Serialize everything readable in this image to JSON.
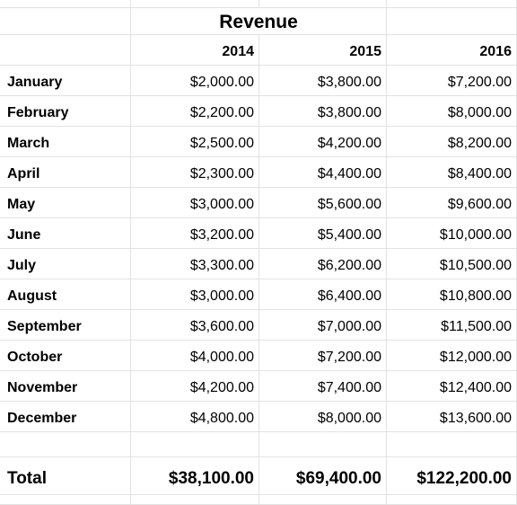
{
  "sheet": {
    "title": "Revenue",
    "years": [
      "2014",
      "2015",
      "2016"
    ],
    "rows": [
      {
        "month": "January",
        "values": [
          "$2,000.00",
          "$3,800.00",
          "$7,200.00"
        ]
      },
      {
        "month": "February",
        "values": [
          "$2,200.00",
          "$3,800.00",
          "$8,000.00"
        ]
      },
      {
        "month": "March",
        "values": [
          "$2,500.00",
          "$4,200.00",
          "$8,200.00"
        ]
      },
      {
        "month": "April",
        "values": [
          "$2,300.00",
          "$4,400.00",
          "$8,400.00"
        ]
      },
      {
        "month": "May",
        "values": [
          "$3,000.00",
          "$5,600.00",
          "$9,600.00"
        ]
      },
      {
        "month": "June",
        "values": [
          "$3,200.00",
          "$5,400.00",
          "$10,000.00"
        ]
      },
      {
        "month": "July",
        "values": [
          "$3,300.00",
          "$6,200.00",
          "$10,500.00"
        ]
      },
      {
        "month": "August",
        "values": [
          "$3,000.00",
          "$6,400.00",
          "$10,800.00"
        ]
      },
      {
        "month": "September",
        "values": [
          "$3,600.00",
          "$7,000.00",
          "$11,500.00"
        ]
      },
      {
        "month": "October",
        "values": [
          "$4,000.00",
          "$7,200.00",
          "$12,000.00"
        ]
      },
      {
        "month": "November",
        "values": [
          "$4,200.00",
          "$7,400.00",
          "$12,400.00"
        ]
      },
      {
        "month": "December",
        "values": [
          "$4,800.00",
          "$8,000.00",
          "$13,600.00"
        ]
      }
    ],
    "total": {
      "label": "Total",
      "values": [
        "$38,100.00",
        "$69,400.00",
        "$122,200.00"
      ]
    }
  }
}
